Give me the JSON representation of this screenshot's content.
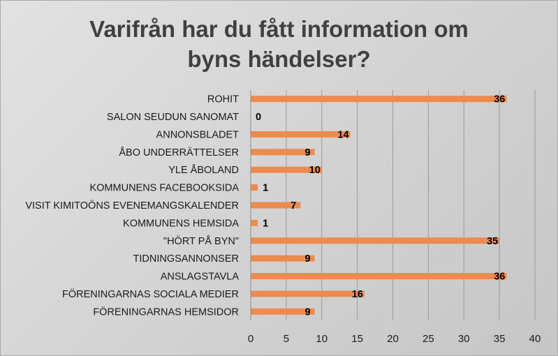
{
  "chart_data": {
    "type": "bar",
    "orientation": "horizontal",
    "title_lines": [
      "Varifrån har du fått information om",
      "byns händelser?"
    ],
    "categories": [
      "ROHIT",
      "SALON SEUDUN SANOMAT",
      "ANNONSBLADET",
      "ÅBO UNDERRÄTTELSER",
      "YLE ÅBOLAND",
      "KOMMUNENS FACEBOOKSIDA",
      "VISIT KIMITOÖNS EVENEMANGSKALENDER",
      "KOMMUNENS HEMSIDA",
      "\"HÖRT PÅ BYN\"",
      "TIDNINGSANNONSER",
      "ANSLAGSTAVLA",
      "FÖRENINGARNAS SOCIALA MEDIER",
      "FÖRENINGARNAS HEMSIDOR"
    ],
    "values": [
      36,
      0,
      14,
      9,
      10,
      1,
      7,
      1,
      35,
      9,
      36,
      16,
      9
    ],
    "xlim": [
      0,
      40
    ],
    "xticks": [
      0,
      5,
      10,
      15,
      20,
      25,
      30,
      35,
      40
    ],
    "grid": true,
    "legend": "none",
    "bar_color": "#ED8A4F",
    "gridline_color": "#9A9A9A"
  }
}
